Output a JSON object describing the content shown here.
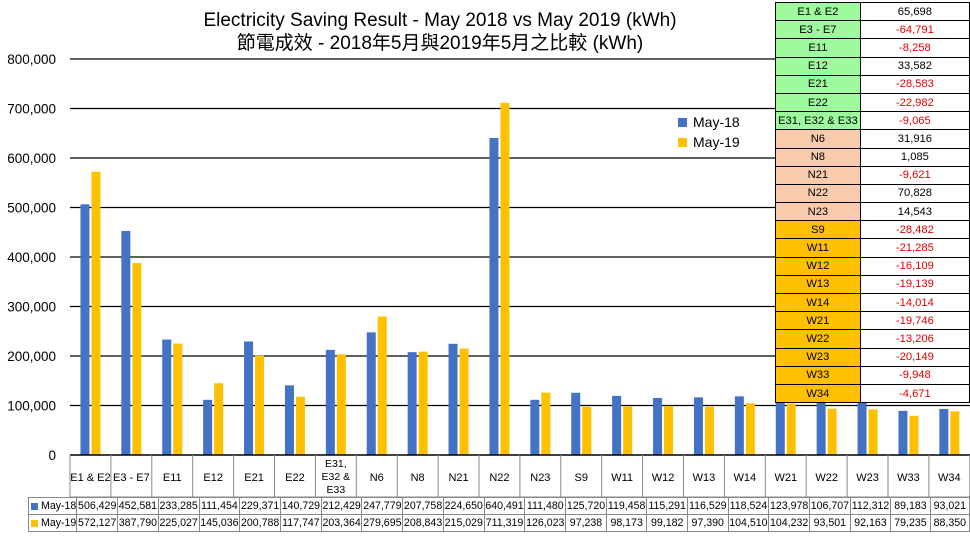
{
  "chart_data": {
    "type": "bar",
    "title": "Electricity Saving Result - May 2018 vs May 2019 (kWh)",
    "subtitle": "節電成效 - 2018年5月與2019年5月之比較 (kWh)",
    "ylim": [
      0,
      800000
    ],
    "yticks": [
      "0",
      "100,000",
      "200,000",
      "300,000",
      "400,000",
      "500,000",
      "600,000",
      "700,000",
      "800,000"
    ],
    "ytick_values": [
      0,
      100000,
      200000,
      300000,
      400000,
      500000,
      600000,
      700000,
      800000
    ],
    "grid": true,
    "legend": "right",
    "categories": [
      "E1 & E2",
      "E3 - E7",
      "E11",
      "E12",
      "E21",
      "E22",
      "E31, E32 & E33",
      "N6",
      "N8",
      "N21",
      "N22",
      "N23",
      "S9",
      "W11",
      "W12",
      "W13",
      "W14",
      "W21",
      "W22",
      "W23",
      "W33",
      "W34"
    ],
    "series": [
      {
        "name": "May-18",
        "color": "#4472c4",
        "values": [
          506429,
          452581,
          233285,
          111454,
          229371,
          140729,
          212429,
          247779,
          207758,
          224650,
          640491,
          111480,
          125720,
          119458,
          115291,
          116529,
          118524,
          123978,
          106707,
          112312,
          89183,
          93021
        ],
        "labels": [
          "506,429",
          "452,581",
          "233,285",
          "111,454",
          "229,371",
          "140,729",
          "212,429",
          "247,779",
          "207,758",
          "224,650",
          "640,491",
          "111,480",
          "125,720",
          "119,458",
          "115,291",
          "116,529",
          "118,524",
          "123,978",
          "106,707",
          "112,312",
          "89,183",
          "93,021"
        ]
      },
      {
        "name": "May-19",
        "color": "#ffc000",
        "values": [
          572127,
          387790,
          225027,
          145036,
          200788,
          117747,
          203364,
          279695,
          208843,
          215029,
          711319,
          126023,
          97238,
          98173,
          99182,
          97390,
          104510,
          104232,
          93501,
          92163,
          79235,
          88350
        ],
        "labels": [
          "572,127",
          "387,790",
          "225,027",
          "145,036",
          "200,788",
          "117,747",
          "203,364",
          "279,695",
          "208,843",
          "215,029",
          "711,319",
          "126,023",
          "97,238",
          "98,173",
          "99,182",
          "97,390",
          "104,510",
          "104,232",
          "93,501",
          "92,163",
          "79,235",
          "88,350"
        ]
      }
    ]
  },
  "difference_table": {
    "rows": [
      {
        "zone": "E1 & E2",
        "value": "65,698",
        "negative": false,
        "color": "#9dfa9d"
      },
      {
        "zone": "E3 - E7",
        "value": "-64,791",
        "negative": true,
        "color": "#9dfa9d"
      },
      {
        "zone": "E11",
        "value": "-8,258",
        "negative": true,
        "color": "#9dfa9d"
      },
      {
        "zone": "E12",
        "value": "33,582",
        "negative": false,
        "color": "#9dfa9d"
      },
      {
        "zone": "E21",
        "value": "-28,583",
        "negative": true,
        "color": "#9dfa9d"
      },
      {
        "zone": "E22",
        "value": "-22,982",
        "negative": true,
        "color": "#9dfa9d"
      },
      {
        "zone": "E31, E32 & E33",
        "value": "-9,065",
        "negative": true,
        "color": "#9dfa9d"
      },
      {
        "zone": "N6",
        "value": "31,916",
        "negative": false,
        "color": "#f8cbad"
      },
      {
        "zone": "N8",
        "value": "1,085",
        "negative": false,
        "color": "#f8cbad"
      },
      {
        "zone": "N21",
        "value": "-9,621",
        "negative": true,
        "color": "#f8cbad"
      },
      {
        "zone": "N22",
        "value": "70,828",
        "negative": false,
        "color": "#f8cbad"
      },
      {
        "zone": "N23",
        "value": "14,543",
        "negative": false,
        "color": "#f8cbad"
      },
      {
        "zone": "S9",
        "value": "-28,482",
        "negative": true,
        "color": "#ffc000"
      },
      {
        "zone": "W11",
        "value": "-21,285",
        "negative": true,
        "color": "#ffc000"
      },
      {
        "zone": "W12",
        "value": "-16,109",
        "negative": true,
        "color": "#ffc000"
      },
      {
        "zone": "W13",
        "value": "-19,139",
        "negative": true,
        "color": "#ffc000"
      },
      {
        "zone": "W14",
        "value": "-14,014",
        "negative": true,
        "color": "#ffc000"
      },
      {
        "zone": "W21",
        "value": "-19,746",
        "negative": true,
        "color": "#ffc000"
      },
      {
        "zone": "W22",
        "value": "-13,206",
        "negative": true,
        "color": "#ffc000"
      },
      {
        "zone": "W23",
        "value": "-20,149",
        "negative": true,
        "color": "#ffc000"
      },
      {
        "zone": "W33",
        "value": "-9,948",
        "negative": true,
        "color": "#ffc000"
      },
      {
        "zone": "W34",
        "value": "-4,671",
        "negative": true,
        "color": "#ffc000"
      }
    ]
  }
}
